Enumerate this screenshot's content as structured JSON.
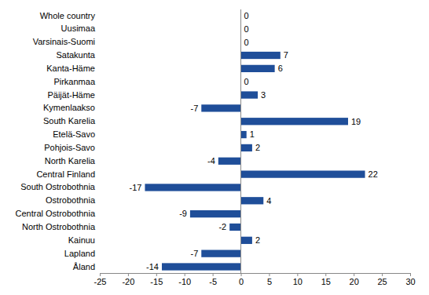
{
  "chart_data": {
    "type": "bar",
    "orientation": "horizontal",
    "data_labels": true,
    "grid": false,
    "color": "#1f4e99",
    "categories": [
      "Whole country",
      "Uusimaa",
      "Varsinais-Suomi",
      "Satakunta",
      "Kanta-Häme",
      "Pirkanmaa",
      "Päijät-Häme",
      "Kymenlaakso",
      "South Karelia",
      "Etelä-Savo",
      "Pohjois-Savo",
      "North Karelia",
      "Central Finland",
      "South Ostrobothnia",
      "Ostrobothnia",
      "Central Ostrobothnia",
      "North Ostrobothnia",
      "Kainuu",
      "Lapland",
      "Åland"
    ],
    "values": [
      0,
      0,
      0,
      7,
      6,
      0,
      3,
      -7,
      19,
      1,
      2,
      -4,
      22,
      -17,
      4,
      -9,
      -2,
      2,
      -7,
      -14
    ],
    "xlim": [
      -25,
      30
    ],
    "xticks": [
      -25,
      -20,
      -15,
      -10,
      -5,
      0,
      5,
      10,
      15,
      20,
      25,
      30
    ]
  }
}
